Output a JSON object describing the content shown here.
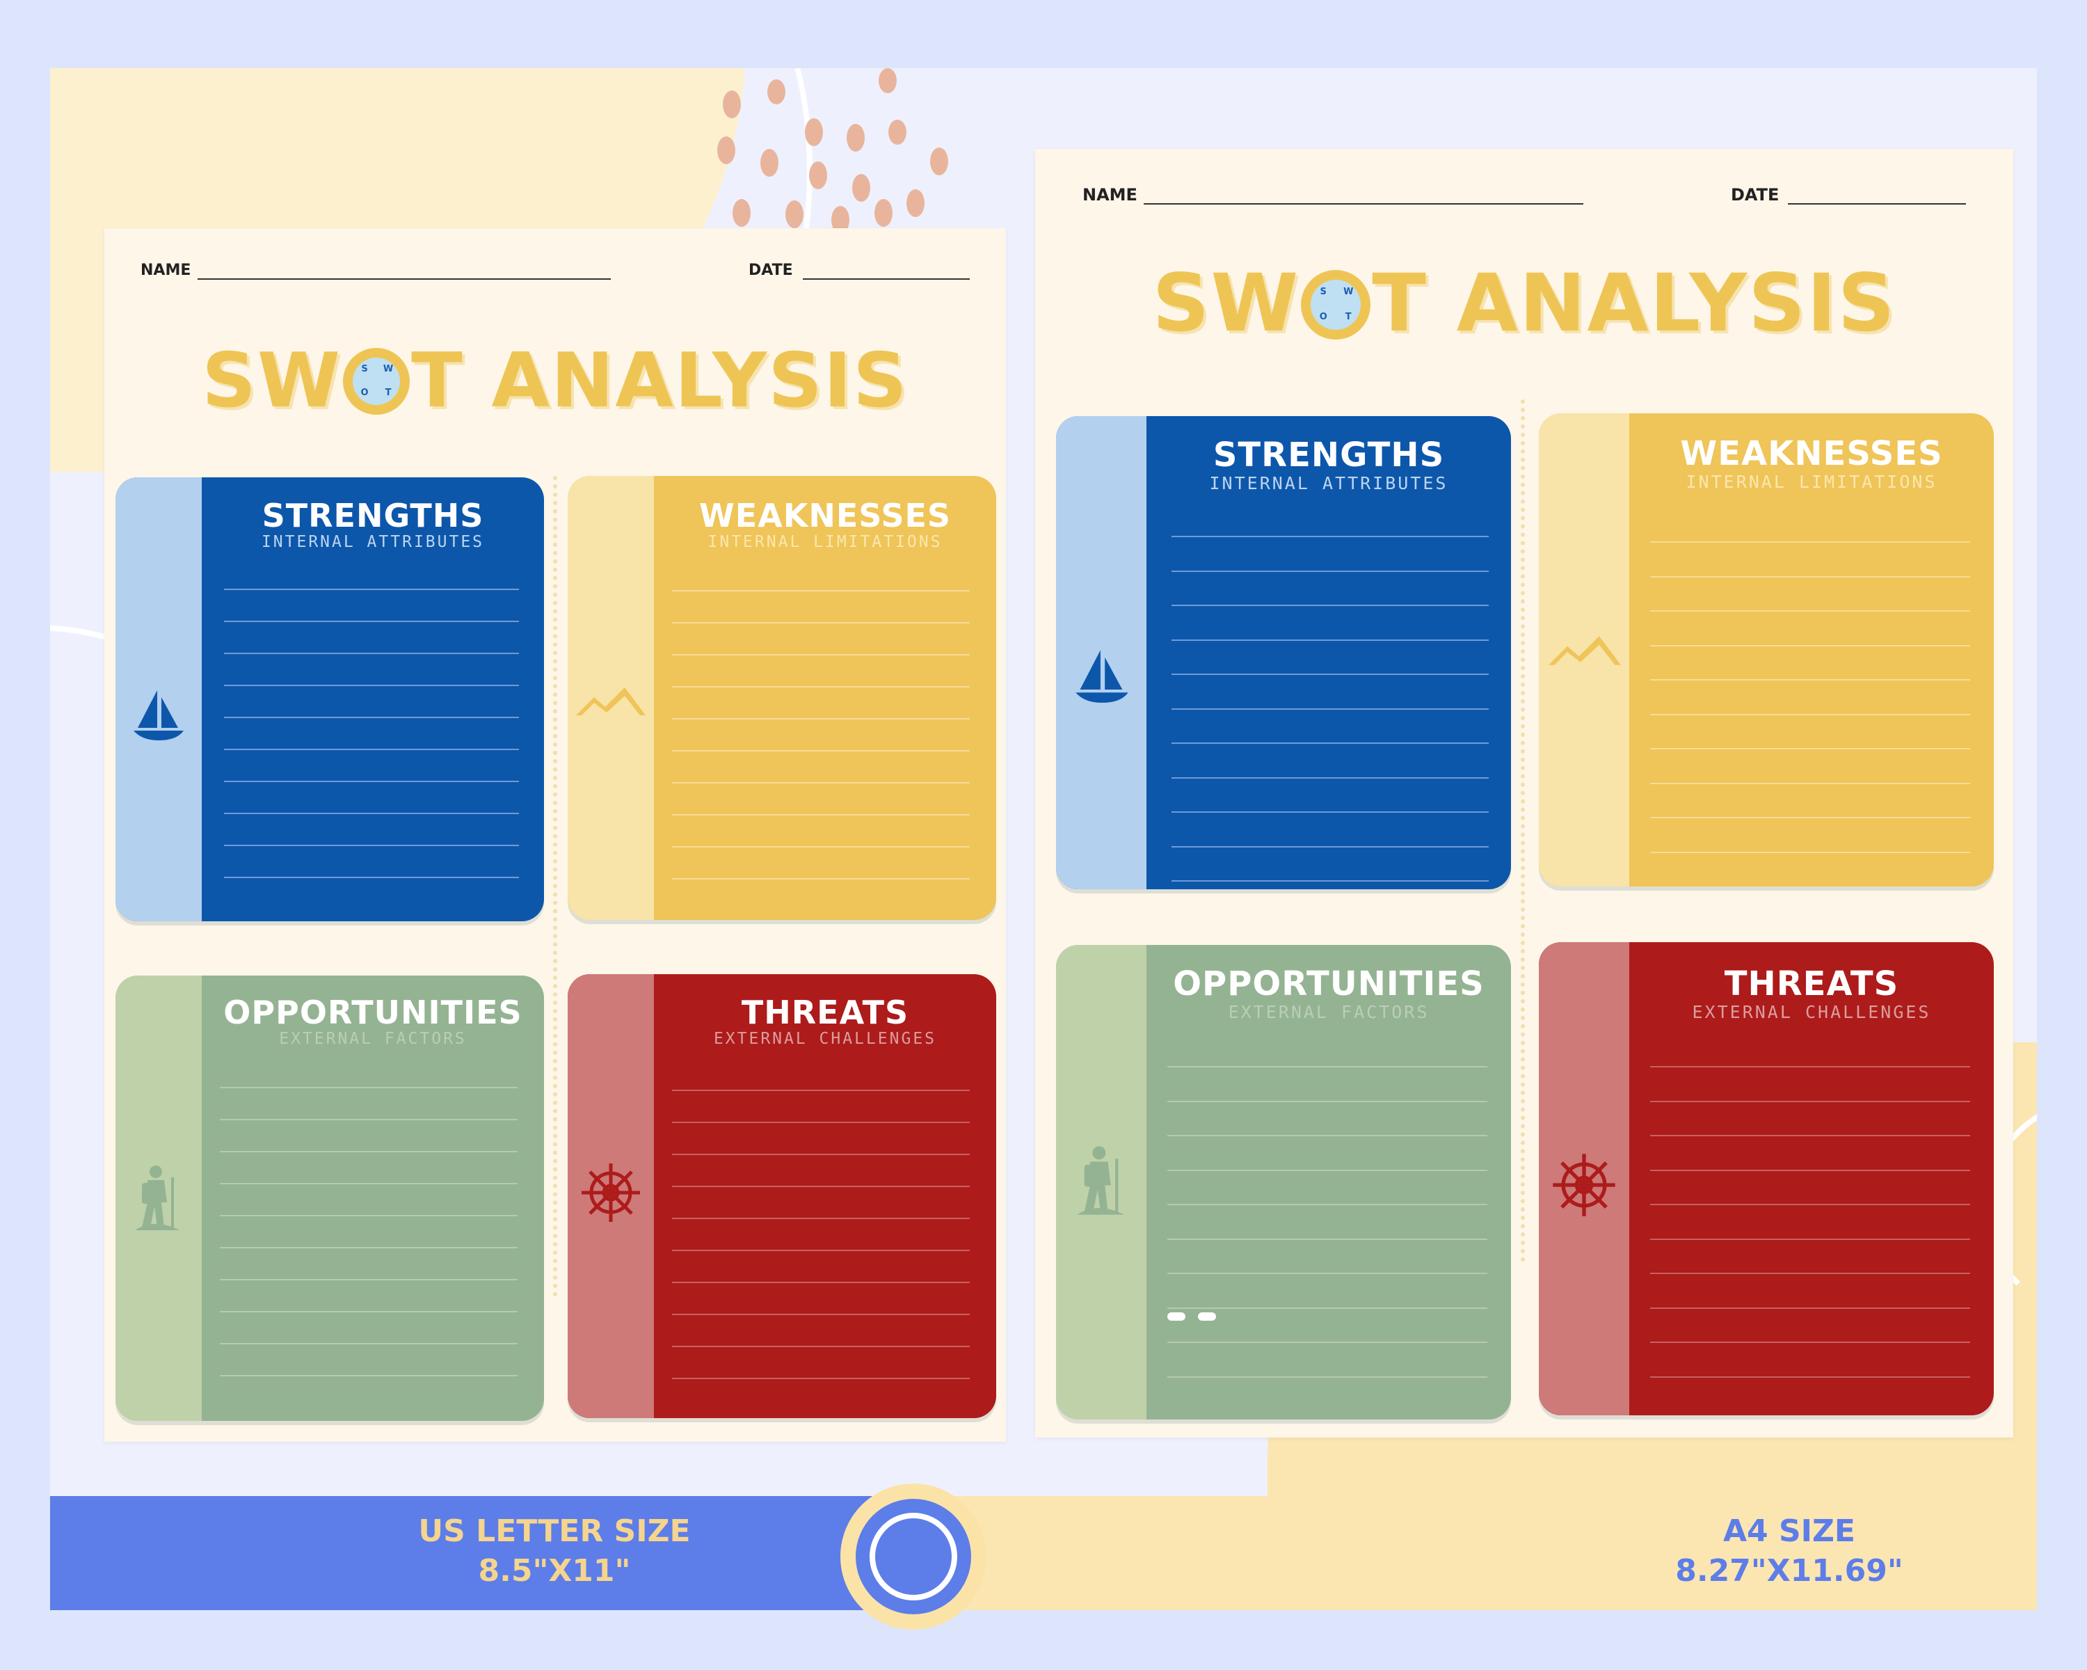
{
  "colors": {
    "strengths": "#0d57ab",
    "strengths_side": "#b3d0ef",
    "weaknesses": "#efc458",
    "weaknesses_side": "#f8e3a8",
    "opportunities": "#94b392",
    "opportunities_side": "#bfd1a9",
    "threats": "#ad1b1b",
    "threats_side": "#cd7a79",
    "title": "#eec555",
    "banner_blue": "#5d7de9"
  },
  "pages": [
    {
      "size_label": "US LETTER SIZE",
      "size_dims": "8.5\"X11\"",
      "name_label": "NAME",
      "date_label": "DATE",
      "title_before": "SW",
      "title_after": "T ANALYSIS",
      "quadrants": {
        "strengths": {
          "title": "STRENGTHS",
          "subtitle": "INTERNAL ATTRIBUTES",
          "icon": "sailboat-icon"
        },
        "weaknesses": {
          "title": "WEAKNESSES",
          "subtitle": "INTERNAL LIMITATIONS",
          "icon": "mountain-icon"
        },
        "opportunities": {
          "title": "OPPORTUNITIES",
          "subtitle": "EXTERNAL FACTORS",
          "icon": "hiker-icon"
        },
        "threats": {
          "title": "THREATS",
          "subtitle": "EXTERNAL CHALLENGES",
          "icon": "ship-wheel-icon"
        }
      }
    },
    {
      "size_label": "A4 SIZE",
      "size_dims": "8.27\"X11.69\"",
      "name_label": "NAME",
      "date_label": "DATE",
      "title_before": "SW",
      "title_after": "T ANALYSIS",
      "quadrants": {
        "strengths": {
          "title": "STRENGTHS",
          "subtitle": "INTERNAL ATTRIBUTES",
          "icon": "sailboat-icon"
        },
        "weaknesses": {
          "title": "WEAKNESSES",
          "subtitle": "INTERNAL LIMITATIONS",
          "icon": "mountain-icon"
        },
        "opportunities": {
          "title": "OPPORTUNITIES",
          "subtitle": "EXTERNAL FACTORS",
          "icon": "hiker-icon"
        },
        "threats": {
          "title": "THREATS",
          "subtitle": "EXTERNAL CHALLENGES",
          "icon": "ship-wheel-icon"
        }
      }
    }
  ],
  "logo_letters": [
    "S",
    "W",
    "O",
    "T"
  ]
}
